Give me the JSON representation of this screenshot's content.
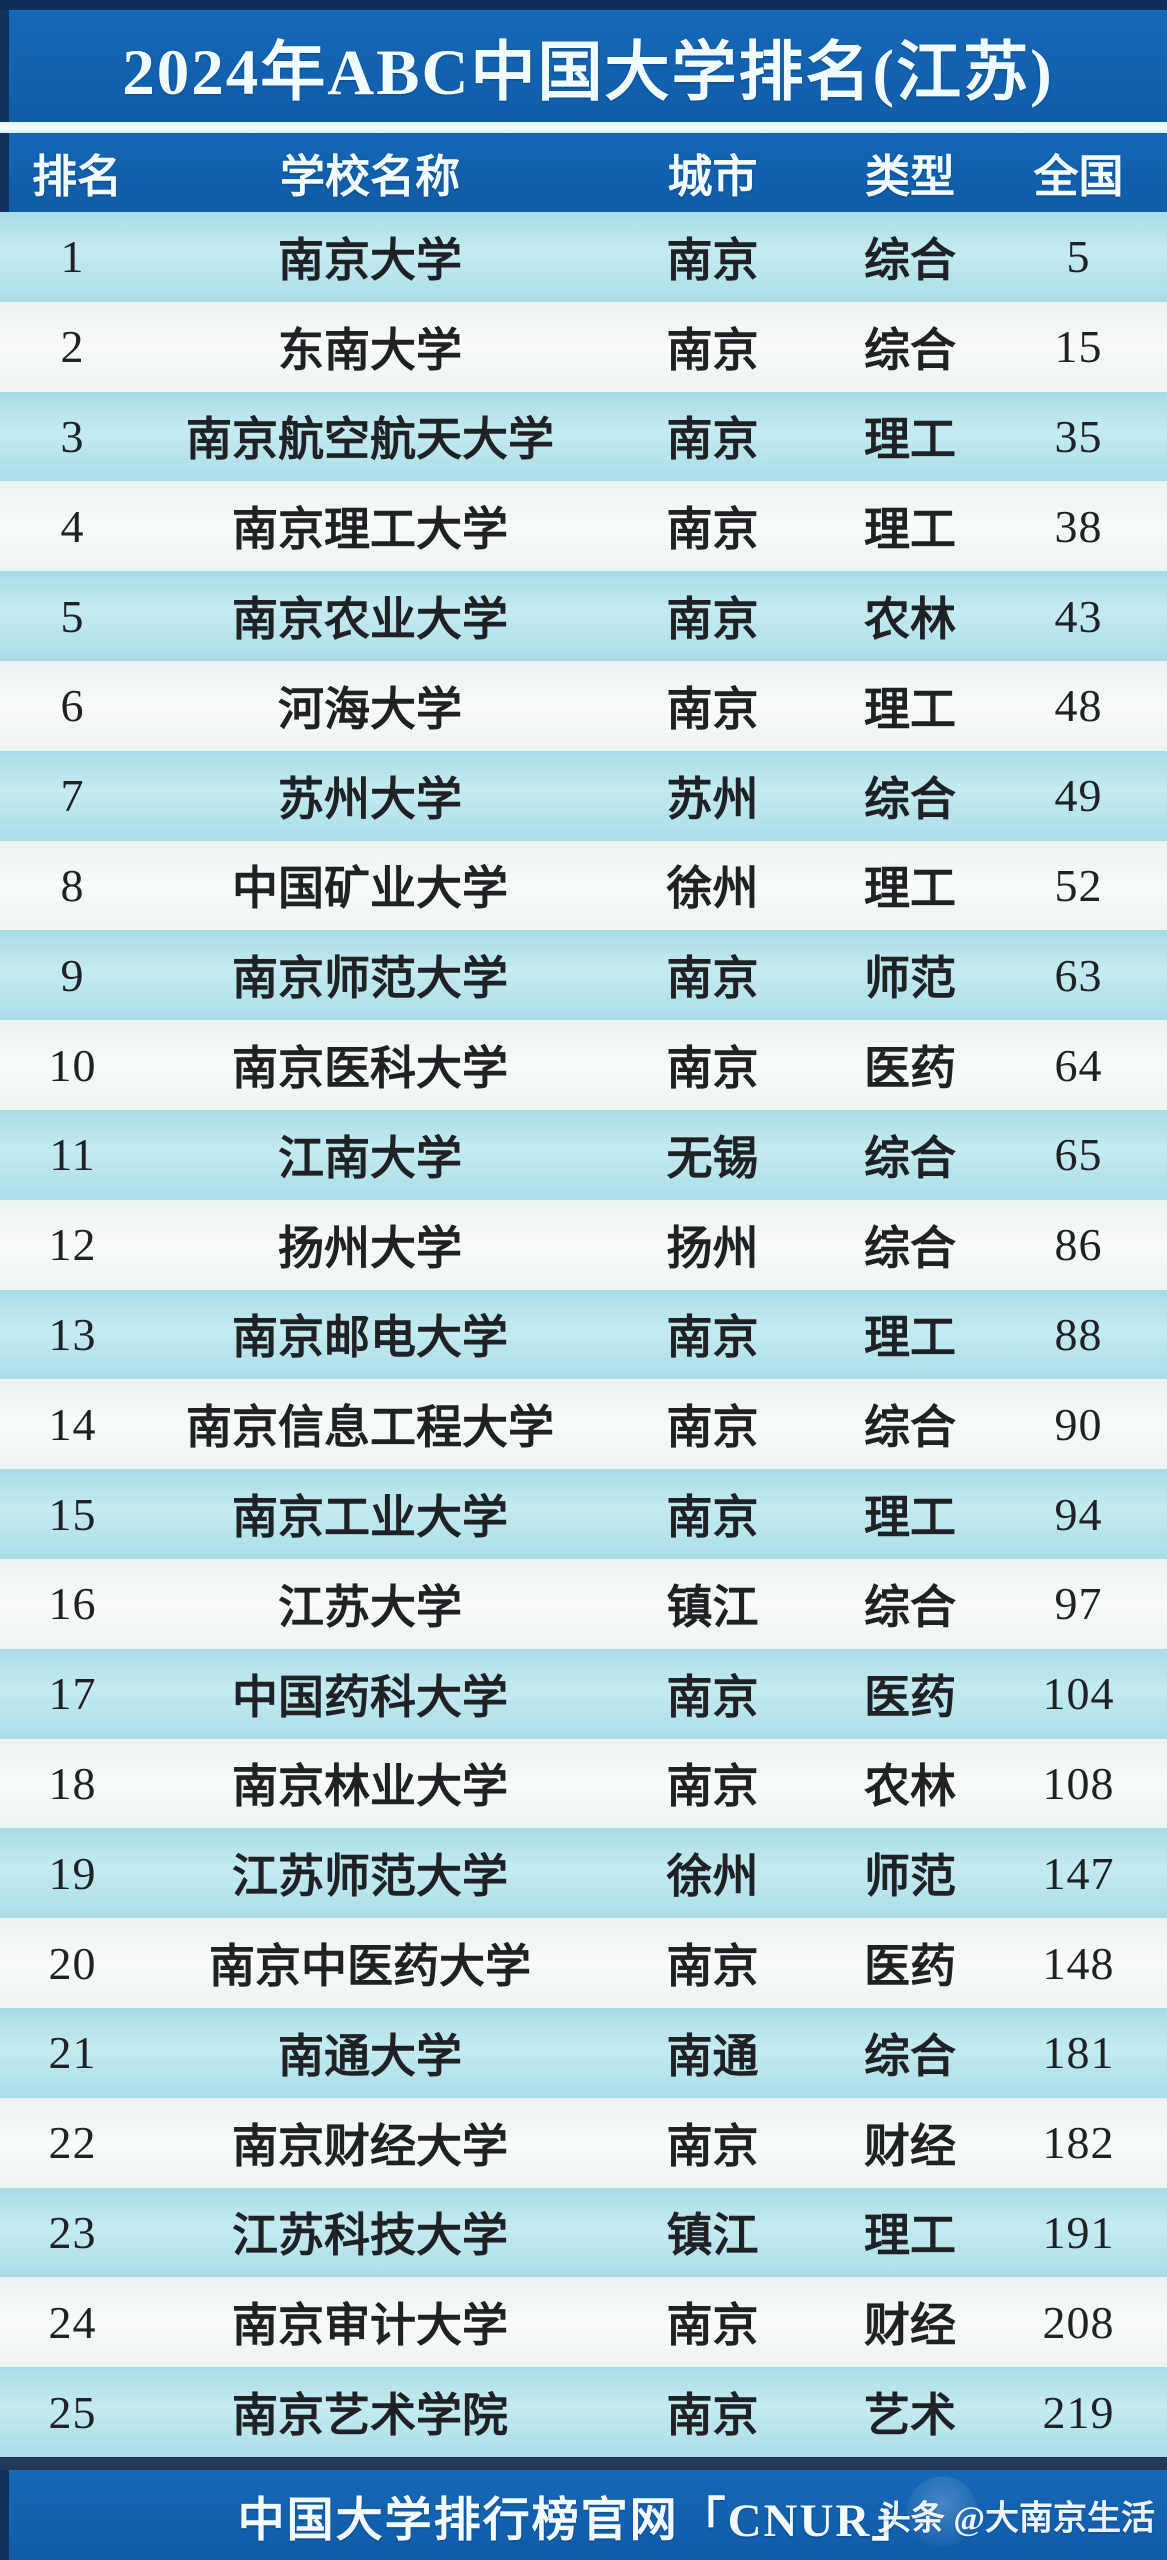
{
  "title": "2024年ABC中国大学排名(江苏)",
  "colors": {
    "band_blue": "#1465b4",
    "frame_navy": "#11315e",
    "row_cyan": "#b3e1ea",
    "row_white": "#f3f7f4",
    "row_text": "#1f2124",
    "band_text": "#f2fbfd"
  },
  "table": {
    "columns": [
      "排名",
      "学校名称",
      "城市",
      "类型",
      "全国"
    ],
    "rows": [
      {
        "rank": "1",
        "school": "南京大学",
        "city": "南京",
        "type": "综合",
        "national": "5"
      },
      {
        "rank": "2",
        "school": "东南大学",
        "city": "南京",
        "type": "综合",
        "national": "15"
      },
      {
        "rank": "3",
        "school": "南京航空航天大学",
        "city": "南京",
        "type": "理工",
        "national": "35"
      },
      {
        "rank": "4",
        "school": "南京理工大学",
        "city": "南京",
        "type": "理工",
        "national": "38"
      },
      {
        "rank": "5",
        "school": "南京农业大学",
        "city": "南京",
        "type": "农林",
        "national": "43"
      },
      {
        "rank": "6",
        "school": "河海大学",
        "city": "南京",
        "type": "理工",
        "national": "48"
      },
      {
        "rank": "7",
        "school": "苏州大学",
        "city": "苏州",
        "type": "综合",
        "national": "49"
      },
      {
        "rank": "8",
        "school": "中国矿业大学",
        "city": "徐州",
        "type": "理工",
        "national": "52"
      },
      {
        "rank": "9",
        "school": "南京师范大学",
        "city": "南京",
        "type": "师范",
        "national": "63"
      },
      {
        "rank": "10",
        "school": "南京医科大学",
        "city": "南京",
        "type": "医药",
        "national": "64"
      },
      {
        "rank": "11",
        "school": "江南大学",
        "city": "无锡",
        "type": "综合",
        "national": "65"
      },
      {
        "rank": "12",
        "school": "扬州大学",
        "city": "扬州",
        "type": "综合",
        "national": "86"
      },
      {
        "rank": "13",
        "school": "南京邮电大学",
        "city": "南京",
        "type": "理工",
        "national": "88"
      },
      {
        "rank": "14",
        "school": "南京信息工程大学",
        "city": "南京",
        "type": "综合",
        "national": "90"
      },
      {
        "rank": "15",
        "school": "南京工业大学",
        "city": "南京",
        "type": "理工",
        "national": "94"
      },
      {
        "rank": "16",
        "school": "江苏大学",
        "city": "镇江",
        "type": "综合",
        "national": "97"
      },
      {
        "rank": "17",
        "school": "中国药科大学",
        "city": "南京",
        "type": "医药",
        "national": "104"
      },
      {
        "rank": "18",
        "school": "南京林业大学",
        "city": "南京",
        "type": "农林",
        "national": "108"
      },
      {
        "rank": "19",
        "school": "江苏师范大学",
        "city": "徐州",
        "type": "师范",
        "national": "147"
      },
      {
        "rank": "20",
        "school": "南京中医药大学",
        "city": "南京",
        "type": "医药",
        "national": "148"
      },
      {
        "rank": "21",
        "school": "南通大学",
        "city": "南通",
        "type": "综合",
        "national": "181"
      },
      {
        "rank": "22",
        "school": "南京财经大学",
        "city": "南京",
        "type": "财经",
        "national": "182"
      },
      {
        "rank": "23",
        "school": "江苏科技大学",
        "city": "镇江",
        "type": "理工",
        "national": "191"
      },
      {
        "rank": "24",
        "school": "南京审计大学",
        "city": "南京",
        "type": "财经",
        "national": "208"
      },
      {
        "rank": "25",
        "school": "南京艺术学院",
        "city": "南京",
        "type": "艺术",
        "national": "219"
      }
    ]
  },
  "footer": {
    "site_label": "中国大学排行榜官网「CNUR」",
    "watermark": "头条 @大南京生活"
  }
}
